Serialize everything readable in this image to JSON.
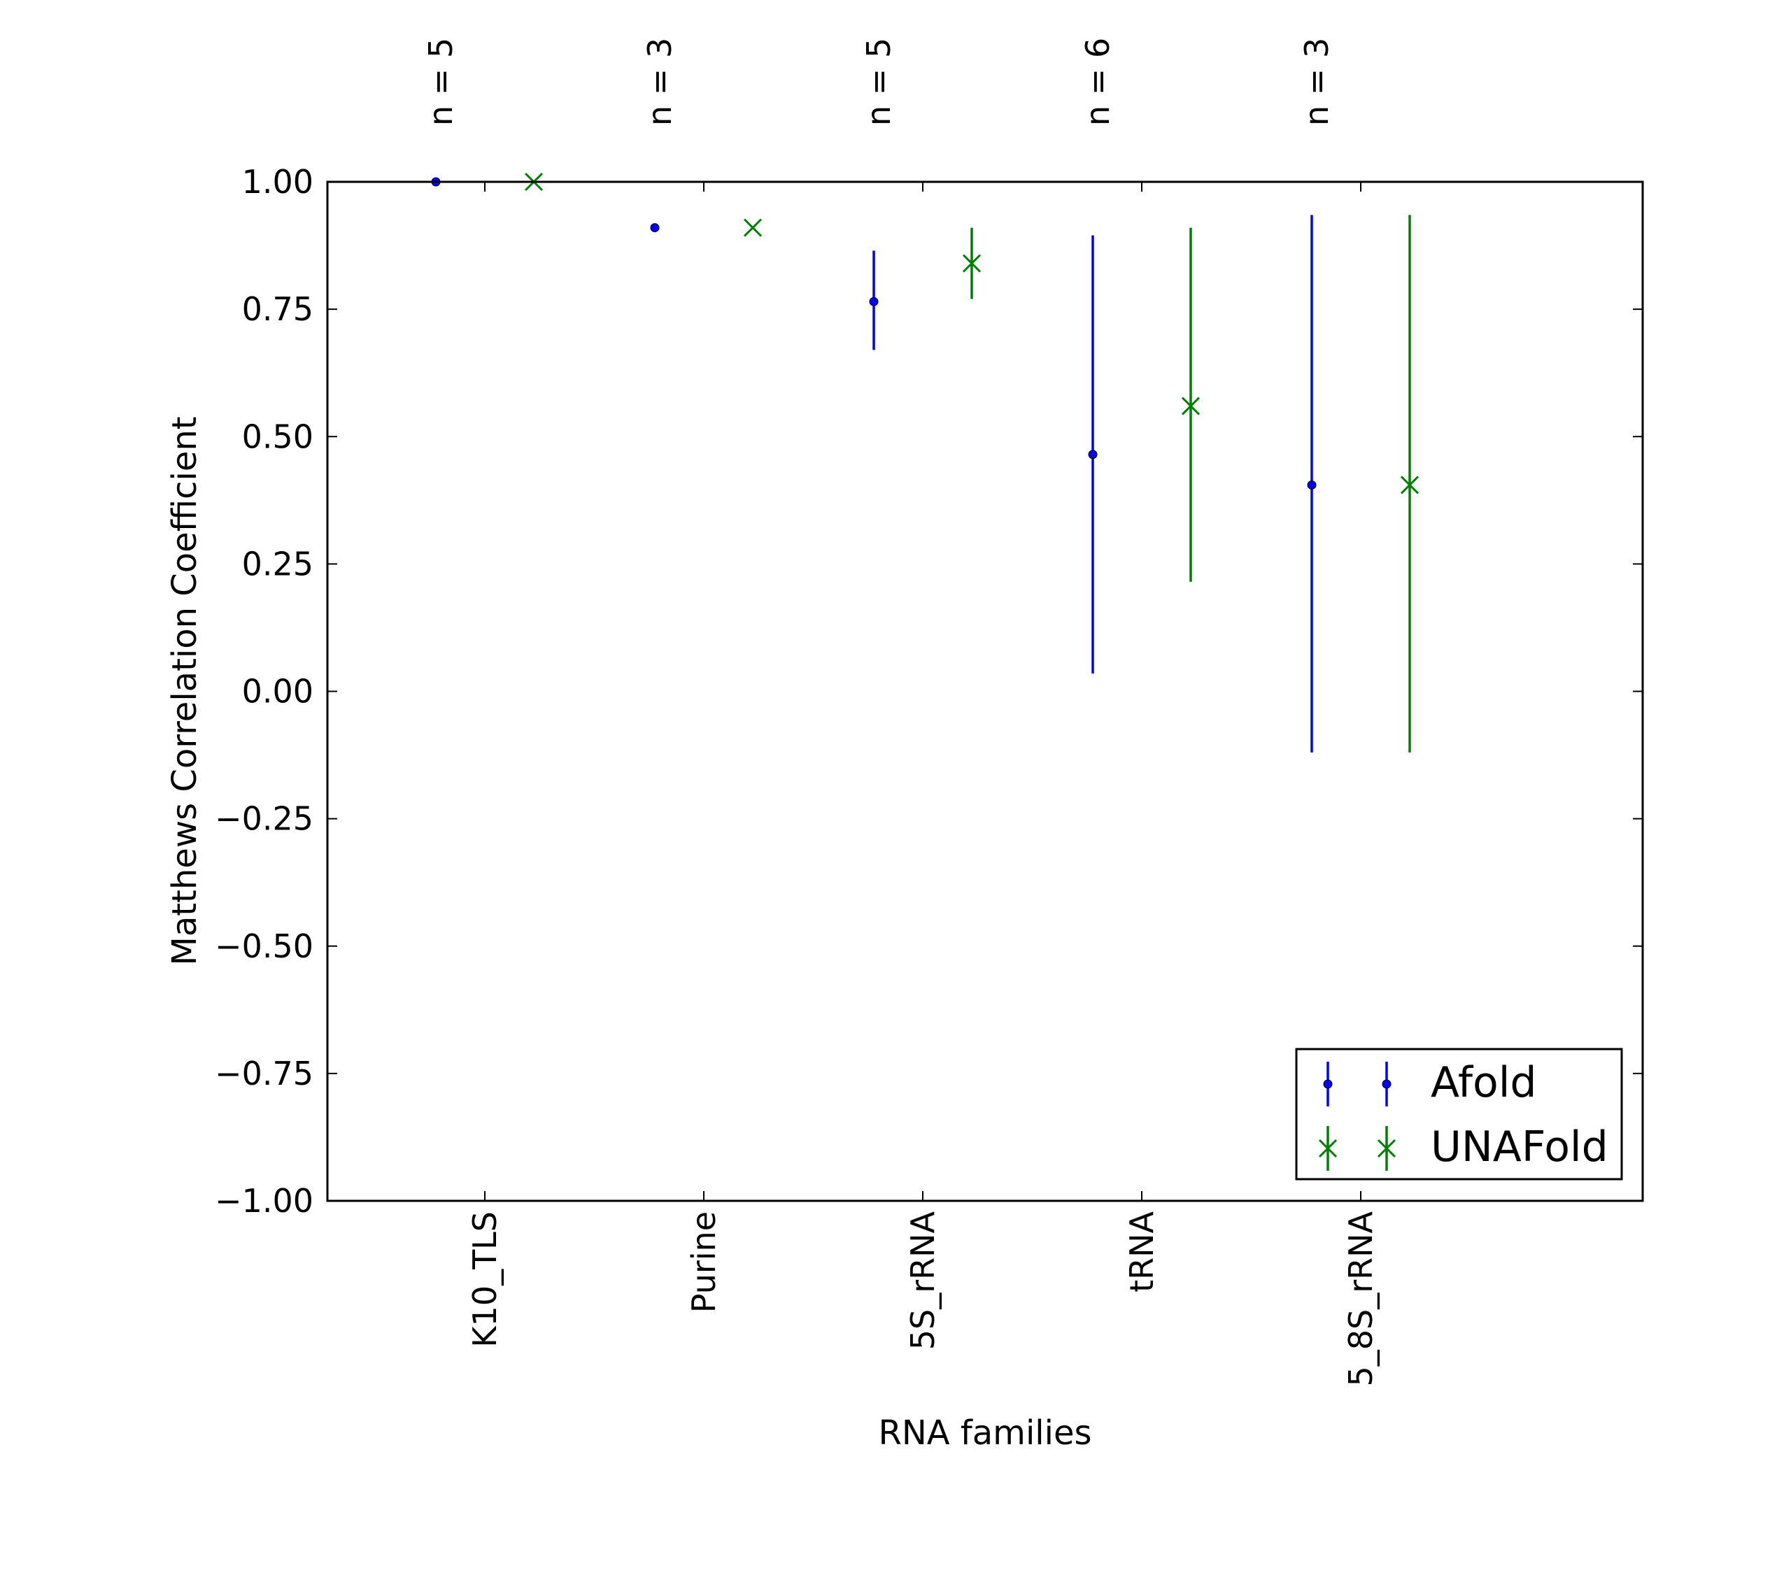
{
  "chart_data": {
    "type": "errorbar",
    "xlabel": "RNA families",
    "ylabel": "Matthews Correlation Coefficient",
    "ylim": [
      -1.0,
      1.0
    ],
    "yticks": [
      "1.00",
      "0.75",
      "0.50",
      "0.25",
      "0.00",
      "−0.25",
      "−0.50",
      "−0.75",
      "−1.00"
    ],
    "ytick_values": [
      1.0,
      0.75,
      0.5,
      0.25,
      0.0,
      -0.25,
      -0.5,
      -0.75,
      -1.0
    ],
    "categories": [
      "K10_TLS",
      "Purine",
      "5S_rRNA",
      "tRNA",
      "5_8S_rRNA"
    ],
    "top_labels": [
      "n = 5",
      "n = 3",
      "n = 5",
      "n = 6",
      "n = 3"
    ],
    "legend_position": "lower-right",
    "grid": false,
    "series": [
      {
        "name": "Afold",
        "color": "#0000ff",
        "marker": "dot",
        "values": [
          1.0,
          0.91,
          0.765,
          0.465,
          0.405
        ],
        "lower": [
          1.0,
          0.91,
          0.67,
          0.035,
          -0.12
        ],
        "upper": [
          1.0,
          0.91,
          0.865,
          0.895,
          0.935
        ]
      },
      {
        "name": "UNAFold",
        "color": "#008000",
        "marker": "x",
        "values": [
          1.0,
          0.91,
          0.84,
          0.56,
          0.405
        ],
        "lower": [
          1.0,
          0.91,
          0.77,
          0.215,
          -0.12
        ],
        "upper": [
          1.0,
          0.91,
          0.91,
          0.91,
          0.935
        ]
      }
    ]
  }
}
